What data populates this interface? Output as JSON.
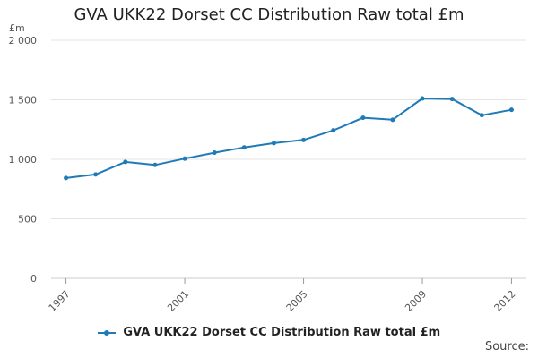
{
  "chart_data": {
    "type": "line",
    "title": "GVA UKK22 Dorset CC Distribution Raw total £m",
    "unit_label": "£m",
    "x": [
      1997,
      1998,
      1999,
      2000,
      2001,
      2002,
      2003,
      2004,
      2005,
      2006,
      2007,
      2008,
      2009,
      2010,
      2011,
      2012
    ],
    "x_tick_labels": [
      "1997",
      "2001",
      "2005",
      "2009",
      "2012"
    ],
    "x_tick_values": [
      1997,
      2001,
      2005,
      2009,
      2012
    ],
    "y_tick_labels": [
      "0",
      "500",
      "1 000",
      "1 500",
      "2 000"
    ],
    "y_tick_values": [
      0,
      500,
      1000,
      1500,
      2000
    ],
    "ylim": [
      0,
      2000
    ],
    "xlim": [
      1997,
      2012
    ],
    "grid": true,
    "legend_position": "bottom",
    "series": [
      {
        "name": "GVA UKK22 Dorset CC Distribution Raw total £m",
        "color": "#1f7ab8",
        "values": [
          843,
          873,
          978,
          953,
          1006,
          1056,
          1100,
          1136,
          1163,
          1243,
          1349,
          1332,
          1511,
          1507,
          1370,
          1416
        ]
      }
    ],
    "source_label": "Source:"
  }
}
